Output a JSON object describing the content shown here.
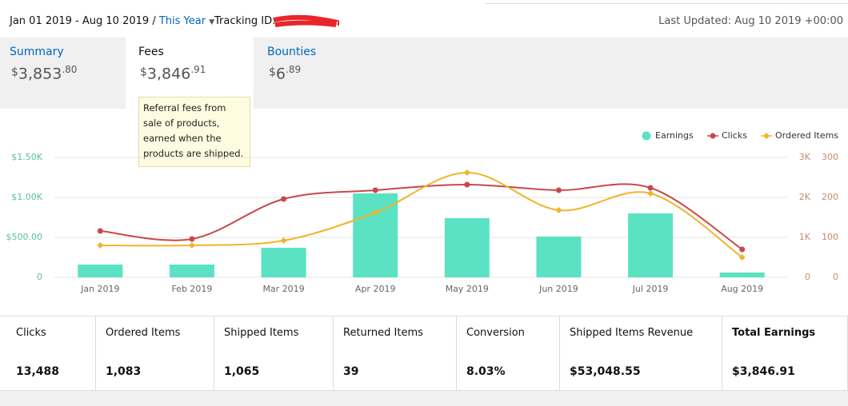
{
  "header": {
    "date_range": "Jan 01 2019 - Aug 10 2019",
    "separator": "/",
    "period": "This Year",
    "tracking_label": "Tracking ID:",
    "last_updated": "Last Updated: Aug 10 2019 +00:00"
  },
  "tabs": [
    {
      "label": "Summary",
      "amount": {
        "currency": "$",
        "whole": "3,853",
        "cents": ".80"
      }
    },
    {
      "label": "Fees",
      "amount": {
        "currency": "$",
        "whole": "3,846",
        "cents": ".91"
      }
    },
    {
      "label": "Bounties",
      "amount": {
        "currency": "$",
        "whole": "6",
        "cents": ".89"
      }
    }
  ],
  "tooltip": {
    "text": "Referral fees from sale of products, earned when the products are shipped."
  },
  "chart_data": {
    "type": "bar",
    "categories": [
      "Jan 2019",
      "Feb 2019",
      "Mar 2019",
      "Apr 2019",
      "May 2019",
      "Jun 2019",
      "Jul 2019",
      "Aug 2019"
    ],
    "series": [
      {
        "name": "Earnings",
        "type": "bar",
        "color": "#5be2c2",
        "values": [
          160,
          160,
          370,
          1050,
          740,
          510,
          800,
          60
        ]
      },
      {
        "name": "Clicks",
        "type": "line",
        "axis": "y2",
        "color": "#c9484b",
        "values": [
          1160,
          960,
          1960,
          2180,
          2320,
          2180,
          2240,
          700
        ]
      },
      {
        "name": "Ordered Items",
        "type": "line",
        "axis": "y3",
        "color": "#f0b429",
        "values": [
          80,
          80,
          92,
          162,
          262,
          168,
          210,
          50
        ]
      }
    ],
    "ylim": [
      0,
      1500
    ],
    "yticks": [
      0,
      {
        "value": 500,
        "label": "$500.00"
      },
      {
        "value": 1000,
        "label": "$1.00K"
      },
      {
        "value": 1500,
        "label": "$1.50K"
      }
    ],
    "y2lim": [
      0,
      3000
    ],
    "y2ticks": [
      0,
      {
        "value": 1000,
        "label": "1K"
      },
      {
        "value": 2000,
        "label": "2K"
      },
      {
        "value": 3000,
        "label": "3K"
      }
    ],
    "y3lim": [
      0,
      300
    ],
    "y3ticks": [
      0,
      100,
      200,
      300
    ],
    "grid": true,
    "legend": "top-right"
  },
  "stats": [
    {
      "label": "Clicks",
      "value": "13,488"
    },
    {
      "label": "Ordered Items",
      "value": "1,083"
    },
    {
      "label": "Shipped Items",
      "value": "1,065"
    },
    {
      "label": "Returned Items",
      "value": "39"
    },
    {
      "label": "Conversion",
      "value": "8.03%"
    },
    {
      "label": "Shipped Items Revenue",
      "value": "$53,048.55"
    },
    {
      "label": "Total Earnings",
      "value": "$3,846.91"
    }
  ]
}
